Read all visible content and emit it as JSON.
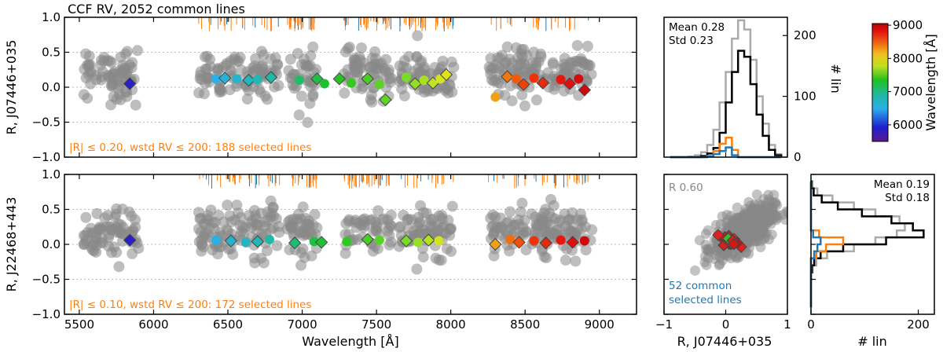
{
  "chart_data": [
    {
      "id": "panel_top_scatter",
      "type": "scatter",
      "title": "CCF RV, 2052 common lines",
      "xlabel": "",
      "ylabel": "R, J07446+035",
      "xlim": [
        5400,
        9250
      ],
      "ylim": [
        -1.0,
        1.0
      ],
      "xticks": [
        5500,
        6000,
        6500,
        7000,
        7500,
        8000,
        8500,
        9000
      ],
      "yticks": [
        -1.0,
        -0.5,
        0.0,
        0.5,
        1.0
      ],
      "ytick_labels": [
        "−1.0",
        "−0.5",
        "0.0",
        "0.5",
        "1.0"
      ],
      "annotation": "|R| ≤ 0.20, wstd RV ≤ 200: 188 selected lines",
      "selected": [
        {
          "x": 5840,
          "y": 0.05
        },
        {
          "x": 6420,
          "y": 0.12
        },
        {
          "x": 6480,
          "y": 0.13
        },
        {
          "x": 6560,
          "y": 0.12
        },
        {
          "x": 6640,
          "y": 0.1
        },
        {
          "x": 6700,
          "y": 0.11
        },
        {
          "x": 6790,
          "y": 0.14
        },
        {
          "x": 6980,
          "y": 0.1
        },
        {
          "x": 7100,
          "y": 0.12
        },
        {
          "x": 7150,
          "y": 0.05
        },
        {
          "x": 7250,
          "y": 0.12
        },
        {
          "x": 7330,
          "y": 0.06
        },
        {
          "x": 7440,
          "y": 0.12
        },
        {
          "x": 7520,
          "y": 0.04
        },
        {
          "x": 7560,
          "y": -0.18
        },
        {
          "x": 7700,
          "y": 0.14
        },
        {
          "x": 7760,
          "y": 0.05
        },
        {
          "x": 7820,
          "y": 0.1
        },
        {
          "x": 7880,
          "y": 0.06
        },
        {
          "x": 7930,
          "y": 0.12
        },
        {
          "x": 7970,
          "y": 0.18
        },
        {
          "x": 8300,
          "y": -0.14
        },
        {
          "x": 8380,
          "y": 0.15
        },
        {
          "x": 8440,
          "y": 0.12
        },
        {
          "x": 8490,
          "y": 0.04
        },
        {
          "x": 8560,
          "y": 0.13
        },
        {
          "x": 8620,
          "y": 0.06
        },
        {
          "x": 8740,
          "y": 0.11
        },
        {
          "x": 8800,
          "y": 0.05
        },
        {
          "x": 8860,
          "y": 0.12
        },
        {
          "x": 8900,
          "y": -0.04
        }
      ],
      "bg_ranges": [
        [
          5530,
          5900
        ],
        [
          6300,
          6850
        ],
        [
          6900,
          7100
        ],
        [
          7280,
          7600
        ],
        [
          7650,
          8020
        ],
        [
          8250,
          8950
        ]
      ],
      "bg_count": 480
    },
    {
      "id": "panel_bottom_scatter",
      "type": "scatter",
      "xlabel": "Wavelength [Å]",
      "ylabel": "R, J22468+443",
      "xlim": [
        5400,
        9250
      ],
      "ylim": [
        -1.0,
        1.0
      ],
      "xticks": [
        5500,
        6000,
        6500,
        7000,
        7500,
        8000,
        8500,
        9000
      ],
      "yticks": [
        -1.0,
        -0.5,
        0.0,
        0.5,
        1.0
      ],
      "ytick_labels": [
        "−1.0",
        "−0.5",
        "0.0",
        "0.5",
        "1.0"
      ],
      "annotation": "|R| ≤ 0.10, wstd RV ≤ 200: 172 selected lines",
      "selected": [
        {
          "x": 5840,
          "y": 0.06
        },
        {
          "x": 6420,
          "y": 0.06
        },
        {
          "x": 6520,
          "y": 0.05
        },
        {
          "x": 6620,
          "y": 0.03
        },
        {
          "x": 6700,
          "y": 0.04
        },
        {
          "x": 6780,
          "y": 0.07
        },
        {
          "x": 6950,
          "y": 0.02
        },
        {
          "x": 7080,
          "y": 0.04
        },
        {
          "x": 7130,
          "y": 0.03
        },
        {
          "x": 7300,
          "y": 0.04
        },
        {
          "x": 7440,
          "y": 0.07
        },
        {
          "x": 7520,
          "y": 0.06
        },
        {
          "x": 7700,
          "y": 0.05
        },
        {
          "x": 7780,
          "y": 0.03
        },
        {
          "x": 7850,
          "y": 0.06
        },
        {
          "x": 7920,
          "y": 0.05
        },
        {
          "x": 8300,
          "y": 0.0
        },
        {
          "x": 8400,
          "y": 0.07
        },
        {
          "x": 8460,
          "y": 0.03
        },
        {
          "x": 8560,
          "y": 0.05
        },
        {
          "x": 8640,
          "y": 0.02
        },
        {
          "x": 8740,
          "y": 0.06
        },
        {
          "x": 8820,
          "y": 0.03
        },
        {
          "x": 8900,
          "y": 0.05
        }
      ],
      "bg_ranges": [
        [
          5530,
          5900
        ],
        [
          6300,
          6850
        ],
        [
          6900,
          7100
        ],
        [
          7280,
          7600
        ],
        [
          7650,
          8020
        ],
        [
          8250,
          8950
        ]
      ],
      "bg_count": 480
    },
    {
      "id": "panel_top_hist",
      "type": "histogram",
      "xlim": [
        -1.0,
        1.0
      ],
      "ylim": [
        0,
        230
      ],
      "yticks": [
        0,
        100,
        200
      ],
      "ylabel": "# lin",
      "mean_text": "Mean 0.28",
      "std_text": "Std 0.23",
      "bins": [
        -0.85,
        -0.75,
        -0.65,
        -0.55,
        -0.45,
        -0.35,
        -0.25,
        -0.15,
        -0.05,
        0.05,
        0.15,
        0.25,
        0.35,
        0.45,
        0.55,
        0.65,
        0.75,
        0.85
      ],
      "series": [
        {
          "values": [
            0,
            0,
            0,
            0,
            0,
            2,
            6,
            15,
            40,
            90,
            140,
            175,
            165,
            120,
            70,
            35,
            12,
            3
          ]
        },
        {
          "values": [
            0,
            0,
            0,
            1,
            3,
            8,
            20,
            45,
            90,
            140,
            195,
            225,
            210,
            160,
            100,
            55,
            20,
            5
          ]
        },
        {
          "values": [
            0,
            0,
            0,
            0,
            0,
            0,
            2,
            10,
            22,
            32,
            12,
            0,
            0,
            0,
            0,
            0,
            0,
            0
          ]
        },
        {
          "values": [
            0,
            0,
            0,
            0,
            0,
            0,
            1,
            5,
            10,
            16,
            3,
            0,
            0,
            0,
            0,
            0,
            0,
            0
          ]
        }
      ]
    },
    {
      "id": "panel_bottom_corr",
      "type": "scatter",
      "xlabel": "R, J07446+035",
      "xlim": [
        -1.0,
        1.0
      ],
      "ylim": [
        -1.0,
        1.0
      ],
      "xticks": [
        -1,
        0,
        1
      ],
      "xtick_labels": [
        "−1",
        "0",
        "1"
      ],
      "r_text": "R 0.60",
      "annotation_line1": "52 common",
      "annotation_line2": "selected lines"
    },
    {
      "id": "panel_bottom_hist",
      "type": "histogram",
      "orientation": "horizontal",
      "xlabel": "# lin",
      "xlim": [
        0,
        230
      ],
      "ylim": [
        -1.0,
        1.0
      ],
      "xticks": [
        0,
        200
      ],
      "mean_text": "Mean 0.19",
      "std_text": "Std 0.18",
      "bins": [
        -0.85,
        -0.75,
        -0.65,
        -0.55,
        -0.45,
        -0.35,
        -0.25,
        -0.15,
        -0.05,
        0.05,
        0.15,
        0.25,
        0.35,
        0.45,
        0.55,
        0.65,
        0.75,
        0.85
      ],
      "series": [
        {
          "values": [
            0,
            0,
            0,
            0,
            0,
            2,
            6,
            18,
            60,
            140,
            210,
            190,
            150,
            95,
            50,
            20,
            5,
            1
          ]
        },
        {
          "values": [
            0,
            0,
            0,
            0,
            0,
            3,
            10,
            30,
            80,
            120,
            160,
            175,
            165,
            120,
            80,
            40,
            12,
            3
          ]
        },
        {
          "values": [
            0,
            0,
            0,
            0,
            0,
            0,
            0,
            10,
            28,
            60,
            15,
            0,
            0,
            0,
            0,
            0,
            0,
            0
          ]
        },
        {
          "values": [
            0,
            0,
            0,
            0,
            0,
            0,
            0,
            6,
            12,
            18,
            4,
            0,
            0,
            0,
            0,
            0,
            0,
            0
          ]
        }
      ]
    },
    {
      "id": "colorbar",
      "type": "colorbar",
      "label": "Wavelength [Å]",
      "range": [
        5500,
        9050
      ],
      "ticks": [
        6000,
        7000,
        8000,
        9000
      ]
    }
  ],
  "colors": {
    "gray_points": "#888888",
    "orange": "#ff7f0e",
    "blue": "#1f77b4",
    "hist_black": "#000000",
    "hist_gray": "#aaaaaa"
  }
}
